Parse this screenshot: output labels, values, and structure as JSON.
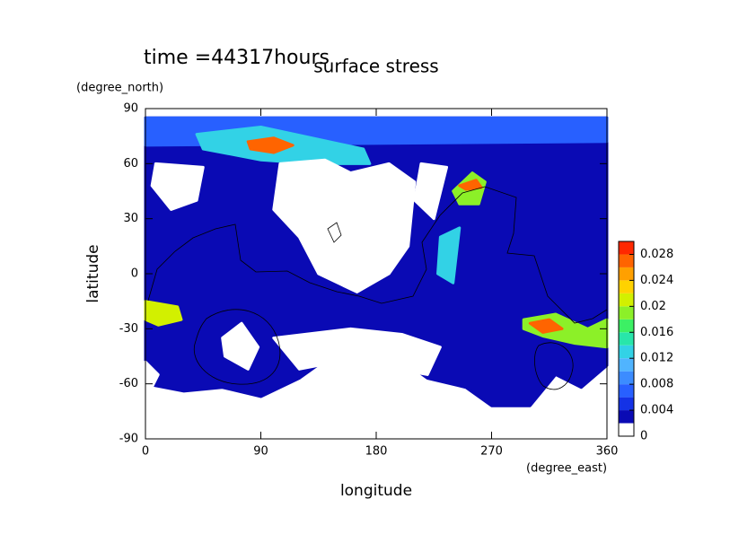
{
  "chart_data": {
    "type": "contour",
    "title": "surface stress",
    "subtitle": "time =44317hours",
    "x_label": "longitude",
    "x_unit": "(degree_east)",
    "y_label": "latitude",
    "y_unit": "(degree_north)",
    "xlim": [
      0,
      360
    ],
    "ylim": [
      -90,
      90
    ],
    "xticks": [
      0,
      90,
      180,
      270,
      360
    ],
    "yticks": [
      -90,
      -60,
      -30,
      0,
      30,
      60,
      90
    ],
    "levels": [
      0,
      0.002,
      0.004,
      0.006,
      0.008,
      0.01,
      0.012,
      0.014,
      0.016,
      0.018,
      0.02,
      0.022,
      0.024,
      0.026,
      0.028,
      0.03
    ],
    "colors": [
      "#ffffff",
      "#0a0ab4",
      "#1432e6",
      "#2860ff",
      "#3c8cff",
      "#50b4ff",
      "#32d2e6",
      "#28e6aa",
      "#3cf064",
      "#8cf028",
      "#d2f000",
      "#ffd200",
      "#ffa000",
      "#ff6400",
      "#ff2800"
    ],
    "colorbar_ticks": [
      0,
      0.004,
      0.008,
      0.012,
      0.016,
      0.02,
      0.024,
      0.028
    ],
    "contours": [
      {
        "level": 0.002,
        "lon": [
          0,
          360,
          360,
          340,
          320,
          300,
          270,
          250,
          220,
          200,
          180,
          150,
          120,
          90,
          60,
          30,
          0
        ],
        "lat": [
          85,
          85,
          -50,
          -62,
          -55,
          -72,
          -72,
          -62,
          -57,
          -47,
          -37,
          -42,
          -57,
          -67,
          -62,
          -64,
          -60
        ]
      },
      {
        "level": 0.006,
        "lon": [
          0,
          360,
          360,
          0
        ],
        "lat": [
          85,
          85,
          72,
          70
        ]
      },
      {
        "level": 0.012,
        "lon": [
          40,
          90,
          130,
          170,
          175,
          130,
          90,
          45
        ],
        "lat": [
          76,
          80,
          74,
          68,
          60,
          60,
          62,
          68
        ]
      },
      {
        "level": 0.026,
        "lon": [
          80,
          100,
          115,
          100,
          82
        ],
        "lat": [
          72,
          74,
          70,
          66,
          68
        ]
      },
      {
        "level": 0,
        "lon": [
          8,
          45,
          40,
          20,
          5
        ],
        "lat": [
          60,
          58,
          40,
          35,
          48
        ]
      },
      {
        "level": 0,
        "lon": [
          105,
          140,
          160,
          190,
          210,
          205,
          190,
          165,
          135,
          120,
          100
        ],
        "lat": [
          60,
          62,
          55,
          60,
          50,
          15,
          0,
          -10,
          0,
          20,
          35
        ]
      },
      {
        "level": 0,
        "lon": [
          215,
          235,
          225,
          210
        ],
        "lat": [
          60,
          58,
          30,
          40
        ]
      },
      {
        "level": 0,
        "lon": [
          60,
          75,
          88,
          80,
          62
        ],
        "lat": [
          -35,
          -27,
          -40,
          -52,
          -45
        ]
      },
      {
        "level": 0,
        "lon": [
          100,
          160,
          200,
          230,
          220,
          180,
          150,
          120
        ],
        "lat": [
          -35,
          -30,
          -33,
          -40,
          -55,
          -50,
          -48,
          -52
        ]
      },
      {
        "level": 0,
        "lon": [
          0,
          10,
          5,
          0
        ],
        "lat": [
          -48,
          -55,
          -62,
          -62
        ]
      },
      {
        "level": 0.018,
        "lon": [
          240,
          255,
          265,
          260,
          245
        ],
        "lat": [
          45,
          55,
          50,
          38,
          38
        ]
      },
      {
        "level": 0.026,
        "lon": [
          245,
          258,
          262,
          250
        ],
        "lat": [
          48,
          51,
          47,
          46
        ]
      },
      {
        "level": 0.02,
        "lon": [
          0,
          25,
          28,
          10,
          0
        ],
        "lat": [
          -15,
          -18,
          -25,
          -28,
          -25
        ]
      },
      {
        "level": 0.018,
        "lon": [
          295,
          320,
          345,
          360,
          360,
          335,
          310,
          295
        ],
        "lat": [
          -25,
          -22,
          -30,
          -25,
          -40,
          -38,
          -34,
          -30
        ]
      },
      {
        "level": 0.026,
        "lon": [
          300,
          315,
          325,
          310
        ],
        "lat": [
          -27,
          -25,
          -30,
          -32
        ]
      },
      {
        "level": 0.012,
        "lon": [
          230,
          245,
          240,
          228
        ],
        "lat": [
          20,
          25,
          -5,
          0
        ]
      }
    ]
  }
}
